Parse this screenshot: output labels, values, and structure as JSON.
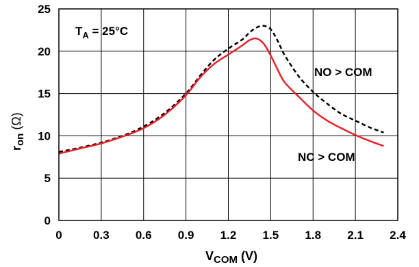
{
  "chart_data": {
    "type": "line",
    "xlabel_main": "V",
    "xlabel_sub": "COM",
    "xlabel_unit": " (V)",
    "ylabel_main": "r",
    "ylabel_sub": "on",
    "ylabel_unit": " (Ω)",
    "xlim": [
      0,
      2.4
    ],
    "ylim": [
      0,
      25
    ],
    "x_ticks": [
      "0",
      "0.3",
      "0.6",
      "0.9",
      "1.2",
      "1.5",
      "1.8",
      "2.1",
      "2.4"
    ],
    "y_ticks": [
      "0",
      "5",
      "10",
      "15",
      "20",
      "25"
    ],
    "grid": true,
    "annotations": {
      "temp_main": "T",
      "temp_sub": "A",
      "temp_rest": " = 25°C",
      "no_label": "NO > COM",
      "nc_label": "NC > COM"
    },
    "series": [
      {
        "name": "NO > COM",
        "color": "#000000",
        "style": "dashed",
        "x": [
          0,
          0.15,
          0.3,
          0.45,
          0.6,
          0.75,
          0.9,
          1.0,
          1.1,
          1.2,
          1.3,
          1.35,
          1.4,
          1.45,
          1.5,
          1.55,
          1.6,
          1.7,
          1.8,
          1.9,
          2.0,
          2.1,
          2.2,
          2.3
        ],
        "y": [
          8.1,
          8.6,
          9.2,
          10.0,
          11.1,
          12.7,
          15.0,
          17.1,
          19.0,
          20.3,
          21.4,
          22.2,
          22.8,
          23.0,
          22.6,
          21.2,
          19.5,
          17.0,
          15.2,
          13.8,
          12.6,
          11.8,
          11.0,
          10.4
        ]
      },
      {
        "name": "NC > COM",
        "color": "#e8212a",
        "style": "solid",
        "x": [
          0,
          0.15,
          0.3,
          0.45,
          0.6,
          0.75,
          0.9,
          1.0,
          1.1,
          1.2,
          1.3,
          1.35,
          1.4,
          1.45,
          1.5,
          1.55,
          1.6,
          1.7,
          1.8,
          1.9,
          2.0,
          2.1,
          2.2,
          2.3
        ],
        "y": [
          7.9,
          8.5,
          9.1,
          9.9,
          10.9,
          12.5,
          14.8,
          16.9,
          18.5,
          19.6,
          20.7,
          21.3,
          21.5,
          20.9,
          19.5,
          17.8,
          16.3,
          14.6,
          13.0,
          11.8,
          10.9,
          10.1,
          9.4,
          8.8
        ]
      }
    ]
  }
}
